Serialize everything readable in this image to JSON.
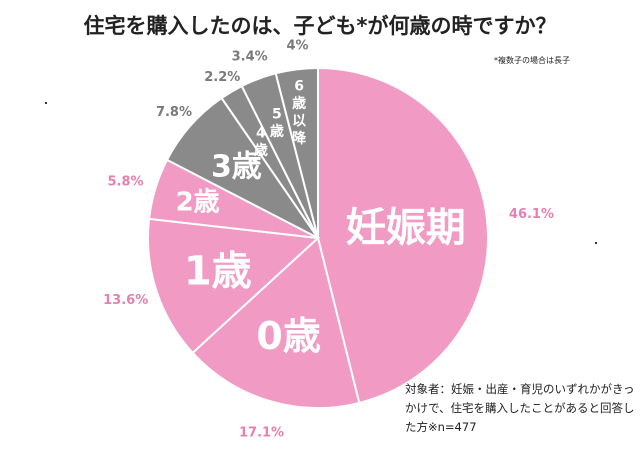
{
  "title": "住宅を購入したのは、子ども*が何歳の時ですか？",
  "note": "*複数子の場合は長子",
  "footnote": "対象者：妊娠・出産・育児のいずれかがきっかけで、住宅を購入したことがあると回答した方※n=477",
  "colors": {
    "pink": "#f09ac4",
    "gray": "#8a8a8a",
    "pink_text": "#e77fb0",
    "gray_text": "#7a7a7a"
  },
  "chart_data": {
    "type": "pie",
    "title": "住宅を購入したのは、子ども*が何歳の時ですか？",
    "unit": "%",
    "start": "12 o'clock, clockwise",
    "slices": [
      {
        "label": "妊娠期",
        "value": 46.1,
        "value_label": "46.1%",
        "color": "#f09ac4"
      },
      {
        "label": "0歳",
        "value": 17.1,
        "value_label": "17.1%",
        "color": "#f09ac4"
      },
      {
        "label": "1歳",
        "value": 13.6,
        "value_label": "13.6%",
        "color": "#f09ac4"
      },
      {
        "label": "2歳",
        "value": 5.8,
        "value_label": "5.8%",
        "color": "#f09ac4"
      },
      {
        "label": "3歳",
        "value": 7.8,
        "value_label": "7.8%",
        "color": "#8a8a8a"
      },
      {
        "label": "4歳",
        "value": 2.2,
        "value_label": "2.2%",
        "color": "#8a8a8a"
      },
      {
        "label": "5歳",
        "value": 3.4,
        "value_label": "3.4%",
        "color": "#8a8a8a"
      },
      {
        "label": "6歳以降",
        "value": 4,
        "value_label": "4%",
        "color": "#8a8a8a"
      }
    ]
  }
}
